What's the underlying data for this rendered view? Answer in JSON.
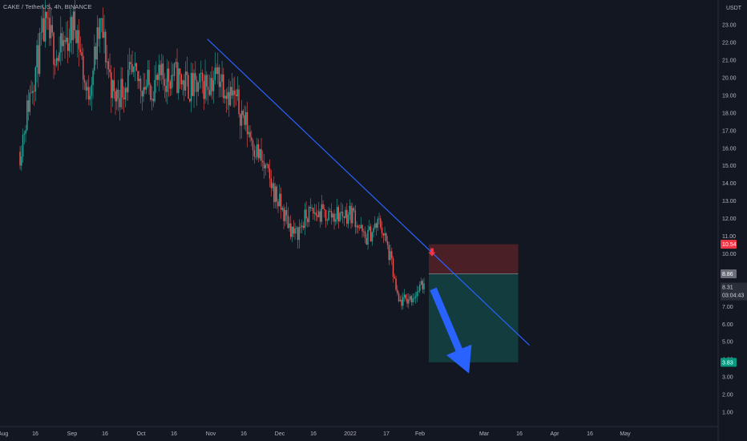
{
  "header": {
    "title": "CAKE / TetherUS, 4h, BINANCE"
  },
  "currency": "USDT",
  "colors": {
    "background": "#131722",
    "up": "#26a69a",
    "down": "#ef5350",
    "trendline": "#2962ff",
    "stop_zone": "#4a1f26",
    "target_zone": "#123c3e",
    "arrow_down_red": "#f23645",
    "arrow_blue": "#2962ff"
  },
  "price_tags": {
    "stop": "10.54",
    "entry": "8.86",
    "last_price": "8.31",
    "countdown": "03:04:43",
    "target": "3.83"
  },
  "chart_data": {
    "type": "candlestick",
    "title": "CAKE / TetherUS, 4h, BINANCE",
    "y_unit": "USDT",
    "ylim": [
      0.3,
      23.8
    ],
    "y_ticks": [
      "1.00",
      "2.00",
      "3.00",
      "4.00",
      "5.00",
      "6.00",
      "7.00",
      "8.00",
      "9.00",
      "10.00",
      "11.00",
      "12.00",
      "13.00",
      "14.00",
      "15.00",
      "16.00",
      "17.00",
      "18.00",
      "19.00",
      "20.00",
      "21.00",
      "22.00",
      "23.00"
    ],
    "x_ticks": [
      "Aug",
      "16",
      "Sep",
      "16",
      "Oct",
      "16",
      "Nov",
      "16",
      "Dec",
      "16",
      "2022",
      "17",
      "Feb",
      "Mar",
      "16",
      "Apr",
      "16",
      "May"
    ],
    "price_path": [
      {
        "date": "Aug 9",
        "price": 15.8
      },
      {
        "date": "Aug 14",
        "price": 19.5
      },
      {
        "date": "Aug 20",
        "price": 22.8
      },
      {
        "date": "Aug 26",
        "price": 21.2
      },
      {
        "date": "Sep 3",
        "price": 23.2
      },
      {
        "date": "Sep 8",
        "price": 18.8
      },
      {
        "date": "Sep 14",
        "price": 23.0
      },
      {
        "date": "Sep 20",
        "price": 18.8
      },
      {
        "date": "Sep 27",
        "price": 20.0
      },
      {
        "date": "Oct 6",
        "price": 19.5
      },
      {
        "date": "Oct 16",
        "price": 20.2
      },
      {
        "date": "Oct 26",
        "price": 19.3
      },
      {
        "date": "Nov 6",
        "price": 20.2
      },
      {
        "date": "Nov 15",
        "price": 18.3
      },
      {
        "date": "Nov 24",
        "price": 15.5
      },
      {
        "date": "Dec 4",
        "price": 12.5
      },
      {
        "date": "Dec 10",
        "price": 11.0
      },
      {
        "date": "Dec 16",
        "price": 12.3
      },
      {
        "date": "Dec 26",
        "price": 12.2
      },
      {
        "date": "Jan 5",
        "price": 12.3
      },
      {
        "date": "Jan 10",
        "price": 10.8
      },
      {
        "date": "Jan 17",
        "price": 11.8
      },
      {
        "date": "Jan 22",
        "price": 9.5
      },
      {
        "date": "Jan 25",
        "price": 7.2
      },
      {
        "date": "Jan 31",
        "price": 7.5
      },
      {
        "date": "Feb 6",
        "price": 8.31
      }
    ],
    "trendline": {
      "from": {
        "date": "Nov 1",
        "price": 22.2
      },
      "to": {
        "date": "Mar 25",
        "price": 4.8
      }
    },
    "short_position": {
      "entry": 8.86,
      "stop": 10.54,
      "target": 3.83,
      "start": "Feb 8",
      "end": "Mar 20"
    },
    "projection_arrow": {
      "from": {
        "date": "Feb 10",
        "price": 8.0
      },
      "to": {
        "date": "Feb 26",
        "price": 3.2
      }
    },
    "grid": false
  }
}
